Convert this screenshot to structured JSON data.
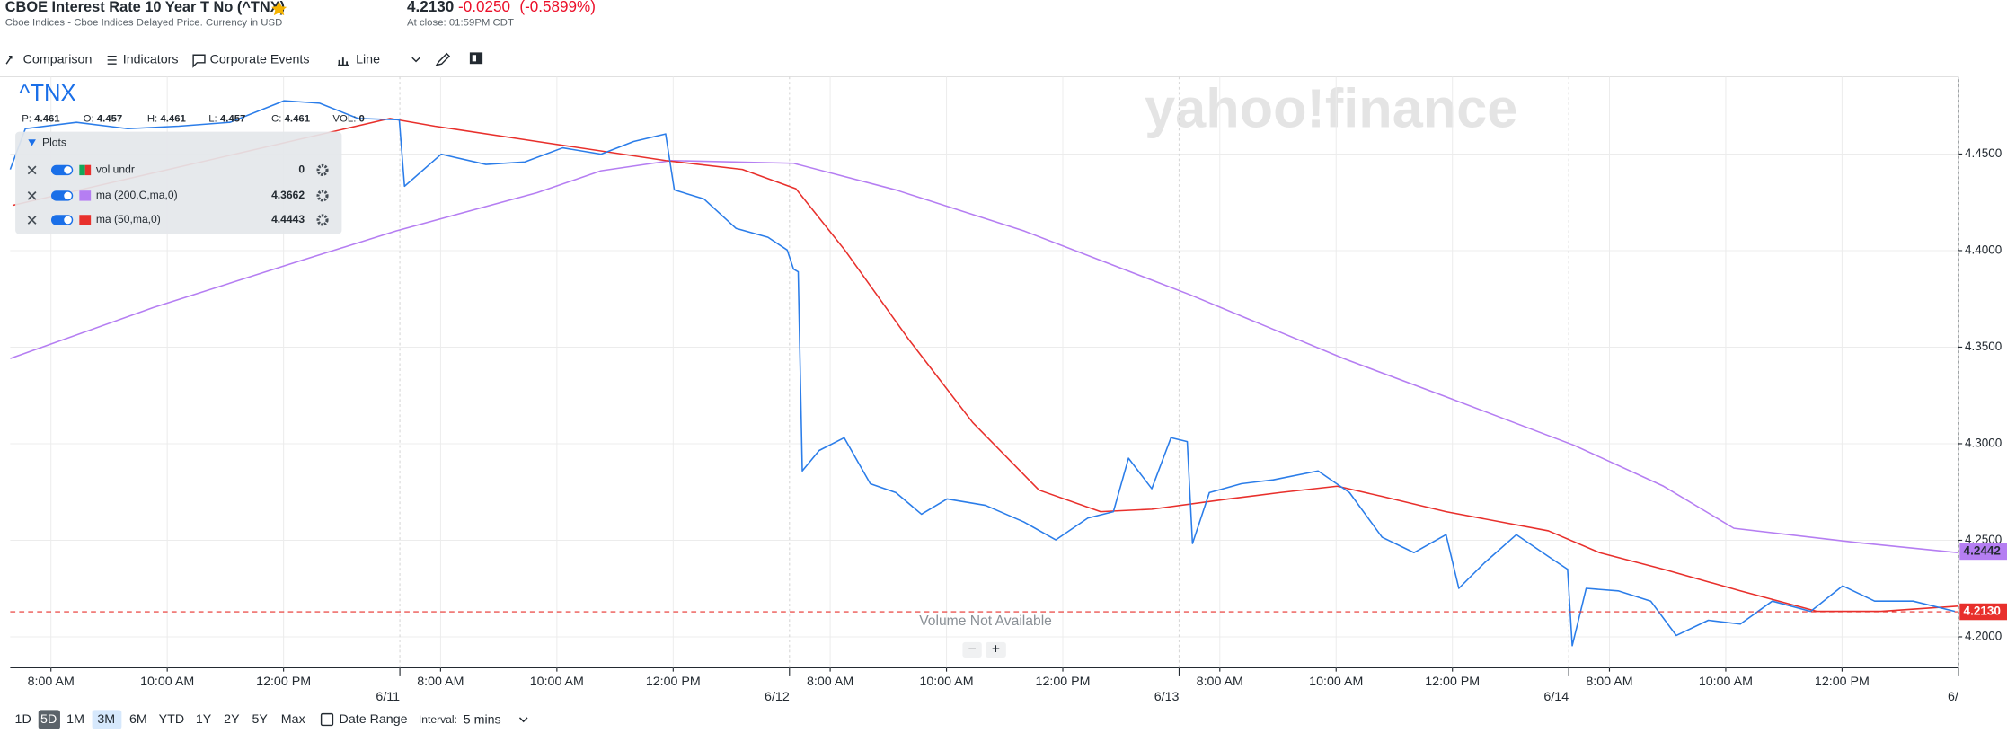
{
  "header": {
    "title": "CBOE Interest Rate 10 Year T No (^TNX)",
    "subtitle": "Cboe Indices - Cboe Indices Delayed Price. Currency in USD",
    "price": "4.2130",
    "change": "-0.0250",
    "change_percent": "(-0.5899%)",
    "close_time": "At close: 01:59PM CDT"
  },
  "toolbar": [
    "Comparison",
    "Indicators",
    "Corporate Events",
    "Line"
  ],
  "watermark": "yahoo!finance",
  "volume_note": "Volume Not Available",
  "zoom": [
    "−",
    "+"
  ],
  "ohlc": [
    {
      "label": "P:",
      "value": 4.461
    },
    {
      "label": "O:",
      "value": 4.457
    },
    {
      "label": "H:",
      "value": 4.461
    },
    {
      "label": "L:",
      "value": 4.457
    },
    {
      "label": "C:",
      "value": 4.461
    },
    {
      "label": "VOL:",
      "value": 0
    }
  ],
  "plots_panel": {
    "title": "Plots",
    "volume_row": {
      "name": "vol undr",
      "value": 0
    }
  },
  "ranges": [
    "1D",
    "5D",
    "1M",
    "3M",
    "6M",
    "YTD",
    "1Y",
    "2Y",
    "5Y",
    "Max"
  ],
  "date_range": "Date Range",
  "interval_label": "Interval:",
  "interval": "5 mins",
  "chart_data": {
    "type": "line",
    "xlim": [
      0,
      33.5
    ],
    "ylim": [
      4.184,
      4.49
    ],
    "grid": true,
    "xticks": [
      {
        "value": 0.7,
        "label": "8:00 AM"
      },
      {
        "value": 2.7,
        "label": "10:00 AM"
      },
      {
        "value": 4.7,
        "label": "12:00 PM"
      },
      {
        "value": 7.4,
        "label": "8:00 AM"
      },
      {
        "value": 9.4,
        "label": "10:00 AM"
      },
      {
        "value": 11.4,
        "label": "12:00 PM"
      },
      {
        "value": 14.1,
        "label": "8:00 AM"
      },
      {
        "value": 16.1,
        "label": "10:00 AM"
      },
      {
        "value": 18.1,
        "label": "12:00 PM"
      },
      {
        "value": 20.8,
        "label": "8:00 AM"
      },
      {
        "value": 22.8,
        "label": "10:00 AM"
      },
      {
        "value": 24.8,
        "label": "12:00 PM"
      },
      {
        "value": 27.5,
        "label": "8:00 AM"
      },
      {
        "value": 29.5,
        "label": "10:00 AM"
      },
      {
        "value": 31.5,
        "label": "12:00 PM"
      }
    ],
    "date_ticks": [
      {
        "value": 6.7,
        "label": "6/11"
      },
      {
        "value": 13.4,
        "label": "6/12"
      },
      {
        "value": 20.1,
        "label": "6/13"
      },
      {
        "value": 26.8,
        "label": "6/14"
      },
      {
        "value": 33.5,
        "label": "6/"
      }
    ],
    "yticks": [
      {
        "value": 4.2,
        "label": "4.2000"
      },
      {
        "value": 4.25,
        "label": "4.2500"
      },
      {
        "value": 4.3,
        "label": "4.3000"
      },
      {
        "value": 4.35,
        "label": "4.3500"
      },
      {
        "value": 4.4,
        "label": "4.4000"
      },
      {
        "value": 4.45,
        "label": "4.4500"
      }
    ],
    "price_line": {
      "value": 4.213,
      "label": "4.2130",
      "color": "#e8302c"
    },
    "tags": [
      {
        "value": 4.2442,
        "color": "#b57ef2"
      }
    ],
    "series": [
      {
        "name": "^TNX",
        "color": "#2b7de9",
        "x": [
          0.0,
          0.26,
          1.14,
          2.02,
          2.9,
          3.78,
          4.71,
          5.32,
          5.98,
          6.69,
          6.78,
          7.41,
          8.18,
          8.85,
          9.5,
          10.16,
          10.72,
          11.27,
          11.42,
          11.93,
          12.48,
          13.03,
          13.36,
          13.47,
          13.55,
          13.62,
          13.91,
          14.34,
          14.79,
          15.23,
          15.67,
          16.11,
          16.77,
          17.43,
          17.98,
          18.53,
          18.97,
          19.23,
          19.63,
          19.96,
          20.24,
          20.33,
          20.62,
          21.17,
          21.72,
          22.49,
          23.03,
          23.59,
          24.14,
          24.69,
          24.91,
          25.35,
          25.9,
          26.45,
          26.78,
          26.86,
          27.1,
          27.65,
          28.21,
          28.65,
          29.2,
          29.75,
          30.3,
          30.96,
          31.51,
          32.06,
          32.72,
          33.44
        ],
        "values": [
          4.442,
          4.4631,
          4.4664,
          4.4631,
          4.4644,
          4.4664,
          4.4776,
          4.4763,
          4.4684,
          4.4677,
          4.4333,
          4.4499,
          4.4446,
          4.4459,
          4.4532,
          4.4499,
          4.4565,
          4.4604,
          4.4314,
          4.4267,
          4.4115,
          4.4069,
          4.4003,
          4.3904,
          4.389,
          4.2859,
          4.2965,
          4.3031,
          4.2793,
          4.2747,
          4.2635,
          4.2714,
          4.2681,
          4.2595,
          4.2502,
          4.2615,
          4.2648,
          4.2925,
          4.2767,
          4.3031,
          4.3011,
          4.2483,
          4.2747,
          4.2793,
          4.2813,
          4.2859,
          4.2747,
          4.2516,
          4.2436,
          4.2529,
          4.2251,
          4.2383,
          4.2529,
          4.2416,
          4.235,
          4.1954,
          4.2251,
          4.2238,
          4.2185,
          4.2007,
          4.2086,
          4.2066,
          4.2185,
          4.2132,
          4.2264,
          4.2185,
          4.2185,
          4.2132
        ]
      },
      {
        "name": "ma (200,C,ma,0)",
        "color": "#b57ef2",
        "legend_value": 4.3662,
        "x": [
          0.0,
          2.46,
          4.88,
          6.64,
          9.06,
          10.16,
          11.37,
          13.47,
          15.23,
          17.43,
          20.29,
          22.93,
          24.69,
          26.89,
          28.43,
          29.64,
          31.73,
          33.49
        ],
        "values": [
          4.3441,
          4.3705,
          4.3937,
          4.4102,
          4.43,
          4.4413,
          4.4466,
          4.4452,
          4.4314,
          4.4102,
          4.3771,
          4.3441,
          4.3243,
          4.2992,
          4.278,
          4.2562,
          4.2489,
          4.2436
        ]
      },
      {
        "name": "ma (50,ma,0)",
        "color": "#e8302c",
        "legend_value": 4.4443,
        "x": [
          0.04,
          6.53,
          7.3,
          9.06,
          11.27,
          12.59,
          13.51,
          14.35,
          15.45,
          16.55,
          17.69,
          18.75,
          19.63,
          20.95,
          21.83,
          22.82,
          23.59,
          24.69,
          26.45,
          27.33,
          28.43,
          29.75,
          31.07,
          32.17,
          33.49
        ],
        "values": [
          4.4234,
          4.4684,
          4.4644,
          4.4565,
          4.4466,
          4.442,
          4.432,
          4.4003,
          4.354,
          4.311,
          4.276,
          4.2648,
          4.2661,
          4.2714,
          4.2747,
          4.278,
          4.2727,
          4.2648,
          4.2549,
          4.2436,
          4.235,
          4.2238,
          4.2132,
          4.2132,
          4.2159
        ]
      }
    ]
  }
}
